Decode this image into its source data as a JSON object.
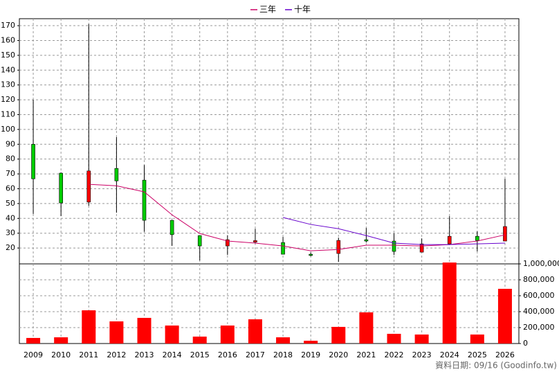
{
  "chart_data": {
    "type": "candlestick",
    "categories": [
      "2009",
      "2010",
      "2011",
      "2012",
      "2013",
      "2014",
      "2015",
      "2016",
      "2017",
      "2018",
      "2019",
      "2020",
      "2021",
      "2022",
      "2023",
      "2024",
      "2025",
      "2026"
    ],
    "ohlc": {
      "open": [
        90,
        70.5,
        51,
        73.7,
        65.8,
        38.7,
        28.4,
        21.4,
        24,
        23.7,
        15.8,
        16.3,
        25.6,
        24.7,
        17.2,
        22.8,
        27.9,
        24.7
      ],
      "high": [
        120,
        71,
        171,
        94.8,
        76,
        38.7,
        28.4,
        28.4,
        33,
        27.5,
        17,
        27,
        33.5,
        29.8,
        26.5,
        41.5,
        31.2,
        66.7
      ],
      "low": [
        43,
        41.5,
        48.5,
        43.8,
        31,
        21.4,
        11.6,
        15.3,
        23,
        15.8,
        14.4,
        10.6,
        23.7,
        15.3,
        17.2,
        22.8,
        17.7,
        24.7
      ],
      "close": [
        66.7,
        50.4,
        72,
        65.3,
        38.7,
        29,
        21.4,
        25.6,
        25,
        15.8,
        15,
        25.1,
        24.7,
        17.7,
        22.8,
        27.9,
        25.1,
        34.5
      ]
    },
    "up_color": "#ff0000",
    "down_color": "#00cc00",
    "lines": [
      {
        "name": "三年",
        "color": "#cc0066",
        "values": [
          null,
          null,
          63,
          62,
          57.9,
          42.4,
          29.8,
          24.7,
          23.3,
          21.4,
          18.1,
          19,
          21.9,
          21.9,
          21.4,
          22.3,
          24.7,
          28.9
        ]
      },
      {
        "name": "十年",
        "color": "#6600cc",
        "values": [
          null,
          null,
          null,
          null,
          null,
          null,
          null,
          null,
          null,
          40.6,
          35.9,
          33,
          28.4,
          23.3,
          22.3,
          22.3,
          22.8,
          23.3
        ]
      }
    ],
    "volume": {
      "color": "#ff0000",
      "axis": "y2",
      "values": [
        70000,
        78000,
        417000,
        278000,
        322000,
        226000,
        87000,
        226000,
        304000,
        78000,
        35000,
        209000,
        391000,
        122000,
        113000,
        1017000,
        113000,
        687000
      ]
    },
    "ylim": [
      9.3,
      174.7
    ],
    "yticks": [
      20,
      30,
      40,
      50,
      60,
      70,
      80,
      90,
      100,
      110,
      120,
      130,
      140,
      150,
      160,
      170
    ],
    "y2lim": [
      0,
      1000000
    ],
    "y2ticks": [
      0,
      {
        "value": 200000,
        "label": "200,000"
      },
      {
        "value": 400000,
        "label": "400,000"
      },
      {
        "value": 600000,
        "label": "600,000"
      },
      {
        "value": 800000,
        "label": "800,000"
      },
      {
        "value": 1000000,
        "label": "1,000,000"
      }
    ],
    "grid": true,
    "footer": "資料日期: 09/16  (Goodinfo.tw)"
  }
}
